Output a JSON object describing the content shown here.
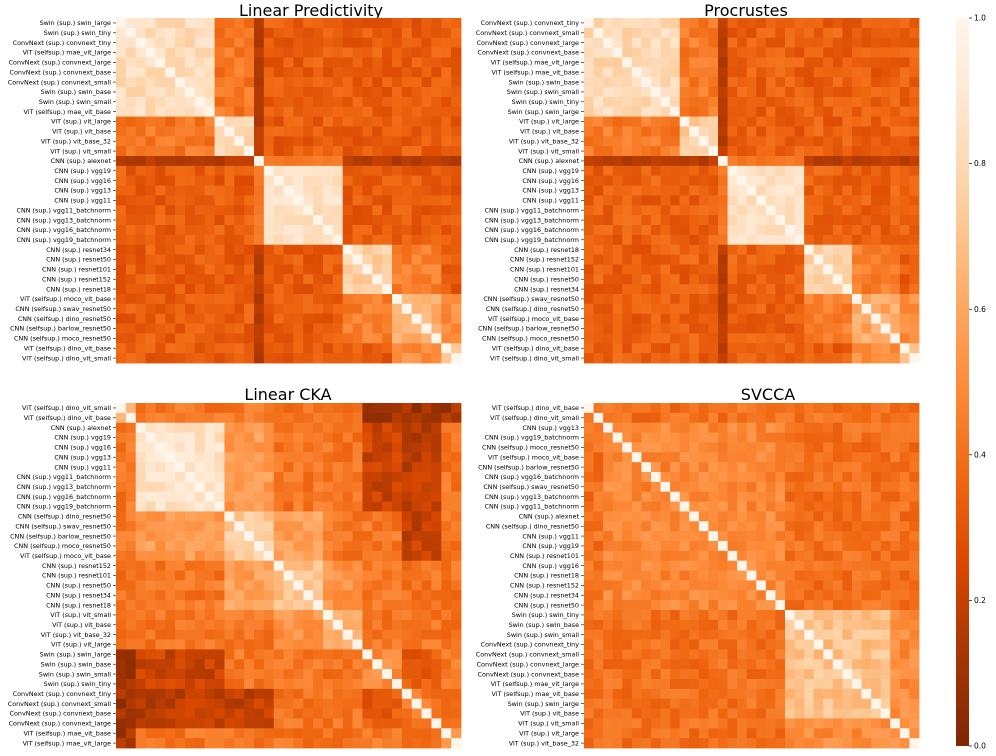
{
  "chart_data": [
    {
      "type": "heatmap",
      "title": "Linear Predictivity",
      "labels": [
        "Swin (sup.) swin_large",
        "Swin (sup.) swin_tiny",
        "ConvNext (sup.) convnext_tiny",
        "ViT (selfsup.) mae_vit_large",
        "ConvNext (sup.) convnext_large",
        "ConvNext (sup.) convnext_base",
        "ConvNext (sup.) convnext_small",
        "Swin (sup.) swin_base",
        "Swin (sup.) swin_small",
        "ViT (selfsup.) mae_vit_base",
        "ViT (sup.) vit_large",
        "ViT (sup.) vit_base",
        "ViT (sup.) vit_base_32",
        "ViT (sup.) vit_small",
        "CNN (sup.) alexnet",
        "CNN (sup.) vgg19",
        "CNN (sup.) vgg16",
        "CNN (sup.) vgg13",
        "CNN (sup.) vgg11",
        "CNN (sup.) vgg11_batchnorm",
        "CNN (sup.) vgg13_batchnorm",
        "CNN (sup.) vgg16_batchnorm",
        "CNN (sup.) vgg19_batchnorm",
        "CNN (sup.) resnet34",
        "CNN (sup.) resnet50",
        "CNN (sup.) resnet101",
        "CNN (sup.) resnet152",
        "CNN (sup.) resnet18",
        "ViT (selfsup.) moco_vit_base",
        "CNN (selfsup.) swav_resnet50",
        "CNN (selfsup.) dino_resnet50",
        "CNN (selfsup.) barlow_resnet50",
        "CNN (selfsup.) moco_resnet50",
        "ViT (selfsup.) dino_vit_base",
        "ViT (selfsup.) dino_vit_small"
      ],
      "groups": [
        10,
        4,
        9,
        5,
        5,
        2
      ],
      "within": [
        0.82,
        0.78,
        0.85,
        0.76,
        0.62,
        0.66
      ],
      "between": 0.33,
      "cross": [
        [
          0,
          1,
          0.42
        ],
        [
          4,
          5,
          0.5
        ],
        [
          3,
          4,
          0.45
        ]
      ],
      "low_rows": [
        14
      ],
      "low_factor": 0.5
    },
    {
      "type": "heatmap",
      "title": "Procrustes",
      "labels": [
        "ConvNext (sup.) convnext_tiny",
        "ConvNext (sup.) convnext_small",
        "ConvNext (sup.) convnext_large",
        "ConvNext (sup.) convnext_base",
        "ViT (selfsup.) mae_vit_large",
        "ViT (selfsup.) mae_vit_base",
        "Swin (sup.) swin_base",
        "Swin (sup.) swin_small",
        "Swin (sup.) swin_tiny",
        "Swin (sup.) swin_large",
        "ViT (sup.) vit_large",
        "ViT (sup.) vit_base",
        "ViT (sup.) vit_base_32",
        "ViT (sup.) vit_small",
        "CNN (sup.) alexnet",
        "CNN (sup.) vgg19",
        "CNN (sup.) vgg16",
        "CNN (sup.) vgg13",
        "CNN (sup.) vgg11",
        "CNN (sup.) vgg11_batchnorm",
        "CNN (sup.) vgg13_batchnorm",
        "CNN (sup.) vgg16_batchnorm",
        "CNN (sup.) vgg19_batchnorm",
        "CNN (sup.) resnet18",
        "CNN (sup.) resnet152",
        "CNN (sup.) resnet101",
        "CNN (sup.) resnet50",
        "CNN (sup.) resnet34",
        "CNN (selfsup.) swav_resnet50",
        "CNN (selfsup.) dino_resnet50",
        "ViT (selfsup.) moco_vit_base",
        "CNN (selfsup.) barlow_resnet50",
        "CNN (selfsup.) moco_resnet50",
        "ViT (selfsup.) dino_vit_base",
        "ViT (selfsup.) dino_vit_small"
      ],
      "groups": [
        10,
        4,
        9,
        5,
        5,
        2
      ],
      "within": [
        0.8,
        0.76,
        0.84,
        0.78,
        0.6,
        0.64
      ],
      "between": 0.34,
      "cross": [
        [
          0,
          1,
          0.44
        ],
        [
          4,
          5,
          0.52
        ],
        [
          3,
          4,
          0.46
        ]
      ],
      "low_rows": [
        14
      ],
      "low_factor": 0.5
    },
    {
      "type": "heatmap",
      "title": "Linear CKA",
      "labels": [
        "ViT (selfsup.) dino_vit_small",
        "ViT (selfsup.) dino_vit_base",
        "CNN (sup.) alexnet",
        "CNN (sup.) vgg19",
        "CNN (sup.) vgg16",
        "CNN (sup.) vgg13",
        "CNN (sup.) vgg11",
        "CNN (sup.) vgg11_batchnorm",
        "CNN (sup.) vgg13_batchnorm",
        "CNN (sup.) vgg16_batchnorm",
        "CNN (sup.) vgg19_batchnorm",
        "CNN (selfsup.) dino_resnet50",
        "CNN (selfsup.) swav_resnet50",
        "CNN (selfsup.) barlow_resnet50",
        "CNN (selfsup.) moco_resnet50",
        "ViT (selfsup.) moco_vit_base",
        "CNN (sup.) resnet152",
        "CNN (sup.) resnet101",
        "CNN (sup.) resnet50",
        "CNN (sup.) resnet34",
        "CNN (sup.) resnet18",
        "ViT (sup.) vit_small",
        "ViT (sup.) vit_base",
        "ViT (sup.) vit_base_32",
        "ViT (sup.) vit_large",
        "Swin (sup.) swin_large",
        "Swin (sup.) swin_base",
        "Swin (sup.) swin_small",
        "Swin (sup.) swin_tiny",
        "ConvNext (sup.) convnext_tiny",
        "ConvNext (sup.) convnext_small",
        "ConvNext (sup.) convnext_base",
        "ConvNext (sup.) convnext_large",
        "ViT (selfsup.) mae_vit_base",
        "ViT (selfsup.) mae_vit_large"
      ],
      "groups": [
        2,
        9,
        5,
        5,
        4,
        4,
        4,
        2
      ],
      "within": [
        0.62,
        0.86,
        0.74,
        0.7,
        0.62,
        0.5,
        0.42,
        0.55
      ],
      "between": 0.42,
      "cross": [
        [
          1,
          2,
          0.55
        ],
        [
          2,
          3,
          0.58
        ],
        [
          3,
          4,
          0.52
        ],
        [
          0,
          5,
          0.12
        ],
        [
          0,
          6,
          0.1
        ],
        [
          0,
          7,
          0.12
        ],
        [
          1,
          6,
          0.18
        ],
        [
          1,
          5,
          0.22
        ],
        [
          2,
          6,
          0.2
        ],
        [
          5,
          6,
          0.32
        ]
      ],
      "low_rows": [],
      "low_factor": 1
    },
    {
      "type": "heatmap",
      "title": "SVCCA",
      "labels": [
        "ViT (selfsup.) dino_vit_base",
        "ViT (selfsup.) dino_vit_small",
        "CNN (sup.) vgg13",
        "CNN (sup.) vgg19_batchnorm",
        "CNN (selfsup.) moco_resnet50",
        "ViT (selfsup.) moco_vit_base",
        "CNN (selfsup.) barlow_resnet50",
        "CNN (sup.) vgg16_batchnorm",
        "CNN (selfsup.) swav_resnet50",
        "CNN (sup.) vgg13_batchnorm",
        "CNN (sup.) vgg11_batchnorm",
        "CNN (sup.) alexnet",
        "CNN (selfsup.) dino_resnet50",
        "CNN (sup.) vgg11",
        "CNN (sup.) vgg19",
        "CNN (sup.) resnet101",
        "CNN (sup.) vgg16",
        "CNN (sup.) resnet18",
        "CNN (sup.) resnet152",
        "CNN (sup.) resnet34",
        "CNN (sup.) resnet50",
        "Swin (sup.) swin_tiny",
        "Swin (sup.) swin_base",
        "Swin (sup.) swin_small",
        "ConvNext (sup.) convnext_tiny",
        "ConvNext (sup.) convnext_small",
        "ConvNext (sup.) convnext_large",
        "ConvNext (sup.) convnext_base",
        "ViT (selfsup.) mae_vit_large",
        "ViT (selfsup.) mae_vit_base",
        "Swin (sup.) swin_large",
        "ViT (sup.) vit_base",
        "ViT (sup.) vit_small",
        "ViT (sup.) vit_large",
        "ViT (sup.) vit_base_32"
      ],
      "groups": [
        2,
        19,
        11,
        3
      ],
      "within": [
        0.45,
        0.48,
        0.7,
        0.52
      ],
      "between": 0.4,
      "cross": [
        [
          2,
          3,
          0.5
        ]
      ],
      "low_rows": [],
      "low_factor": 1
    }
  ],
  "colorbar": {
    "min": 0.0,
    "max": 1.0,
    "ticks": [
      "0.0",
      "0.2",
      "0.4",
      "0.6",
      "0.8",
      "1.0"
    ]
  },
  "colors": {
    "low": "#7f2704",
    "high": "#fff5eb"
  }
}
